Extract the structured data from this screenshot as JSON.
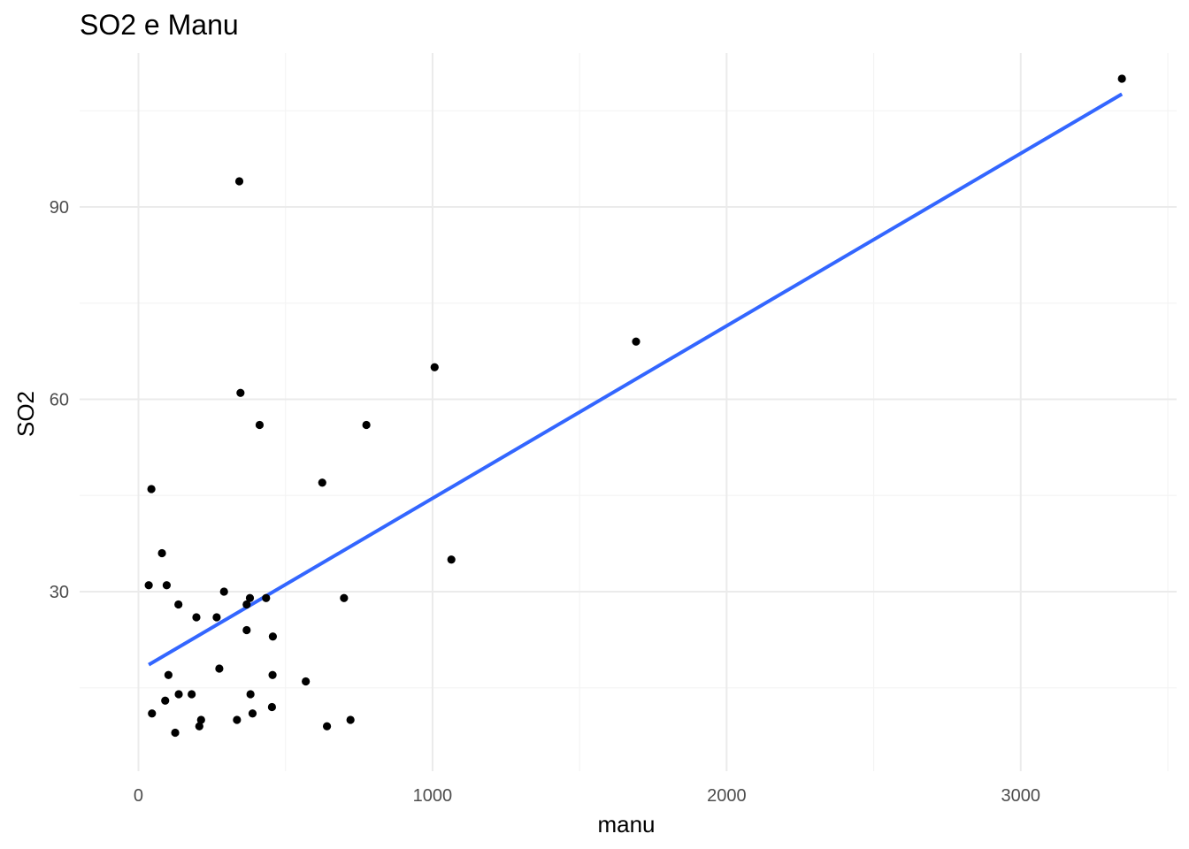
{
  "chart_data": {
    "type": "scatter",
    "title": "SO2 e Manu",
    "xlabel": "manu",
    "ylabel": "SO2",
    "xlim": [
      -200,
      3530
    ],
    "ylim": [
      2,
      114
    ],
    "x_ticks": [
      0,
      1000,
      2000,
      3000
    ],
    "x_tick_labels": [
      "0",
      "1000",
      "2000",
      "3000"
    ],
    "x_minor": [
      500,
      1500,
      2500,
      3500
    ],
    "y_ticks": [
      30,
      60,
      90
    ],
    "y_tick_labels": [
      "30",
      "60",
      "90"
    ],
    "y_minor": [
      15,
      45,
      75,
      105
    ],
    "grid": true,
    "colors": {
      "points": "#000000",
      "trend": "#3366FF",
      "grid_major": "#EBEBEB",
      "grid_minor": "#F4F4F4",
      "tick_text": "#4D4D4D"
    },
    "points": [
      {
        "x": 3344,
        "y": 110
      },
      {
        "x": 343,
        "y": 94
      },
      {
        "x": 1692,
        "y": 69
      },
      {
        "x": 1007,
        "y": 65
      },
      {
        "x": 347,
        "y": 61
      },
      {
        "x": 412,
        "y": 56
      },
      {
        "x": 775,
        "y": 56
      },
      {
        "x": 625,
        "y": 47
      },
      {
        "x": 44,
        "y": 46
      },
      {
        "x": 80,
        "y": 36
      },
      {
        "x": 1064,
        "y": 35
      },
      {
        "x": 35,
        "y": 31
      },
      {
        "x": 96,
        "y": 31
      },
      {
        "x": 291,
        "y": 30
      },
      {
        "x": 379,
        "y": 29
      },
      {
        "x": 434,
        "y": 29
      },
      {
        "x": 699,
        "y": 29
      },
      {
        "x": 136,
        "y": 28
      },
      {
        "x": 368,
        "y": 28
      },
      {
        "x": 197,
        "y": 26
      },
      {
        "x": 266,
        "y": 26
      },
      {
        "x": 368,
        "y": 24
      },
      {
        "x": 457,
        "y": 23
      },
      {
        "x": 275,
        "y": 18
      },
      {
        "x": 102,
        "y": 17
      },
      {
        "x": 456,
        "y": 17
      },
      {
        "x": 569,
        "y": 16
      },
      {
        "x": 137,
        "y": 14
      },
      {
        "x": 181,
        "y": 14
      },
      {
        "x": 381,
        "y": 14
      },
      {
        "x": 91,
        "y": 13
      },
      {
        "x": 454,
        "y": 12
      },
      {
        "x": 46,
        "y": 11
      },
      {
        "x": 388,
        "y": 11
      },
      {
        "x": 213,
        "y": 10
      },
      {
        "x": 335,
        "y": 10
      },
      {
        "x": 721,
        "y": 10
      },
      {
        "x": 207,
        "y": 9
      },
      {
        "x": 641,
        "y": 9
      },
      {
        "x": 125,
        "y": 8
      }
    ],
    "trend_line": {
      "method": "linear",
      "x": [
        35,
        3344
      ],
      "y": [
        18.6,
        107.6
      ]
    }
  }
}
